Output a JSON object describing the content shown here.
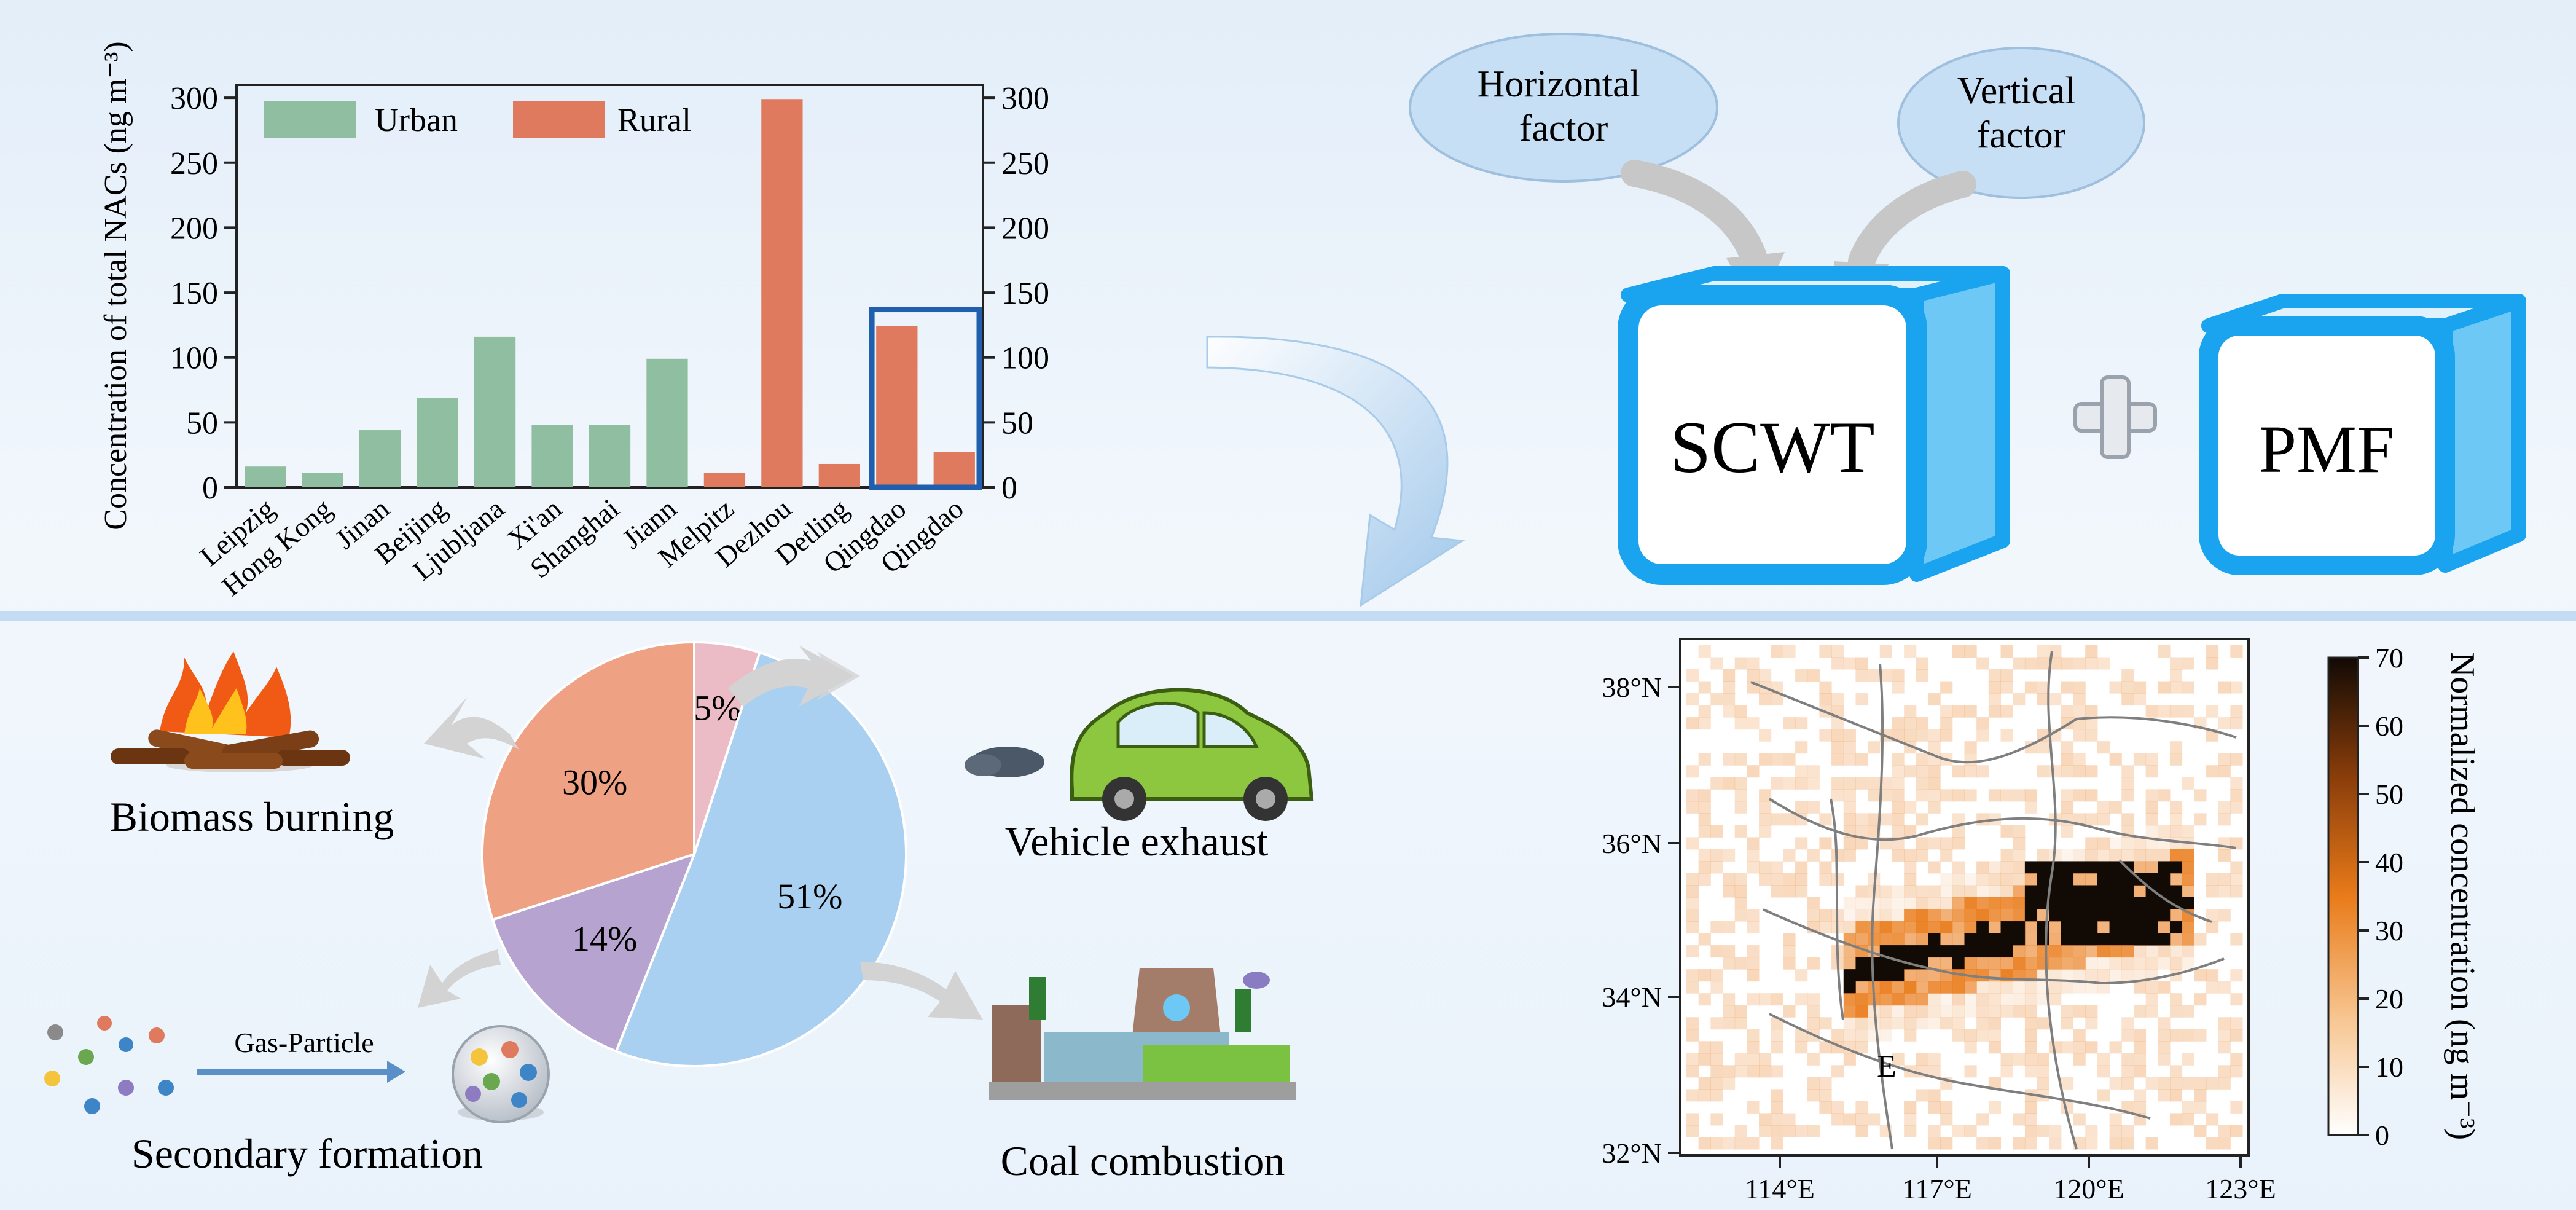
{
  "colors": {
    "urban": "#8fbfa0",
    "rural": "#e07a5f",
    "highlight_box": "#1f5fad",
    "cube_blue": "#1aa3ee",
    "ellipse_fill": "#c6dff4",
    "pie_vehicle": "#a9d0f0",
    "pie_coal": "#b6a3cf",
    "pie_biomass": "#efa184",
    "pie_secondary": "#ecbcc6",
    "map_dark": "#120a04",
    "map_orange": "#e97b1a"
  },
  "bar_chart": {
    "ylabel": "Concentration of total NACs (ng m⁻³)",
    "legend": [
      "Urban",
      "Rural"
    ],
    "y_ticks": [
      "0",
      "50",
      "100",
      "150",
      "200",
      "250",
      "300"
    ],
    "y_ticks_right": [
      "0",
      "50",
      "100",
      "150",
      "200",
      "250",
      "300"
    ]
  },
  "chart_data": {
    "type": "bar",
    "categories": [
      "Leipzig",
      "Hong Kong",
      "Jinan",
      "Beijing",
      "Ljubljana",
      "Xi'an",
      "Shanghai",
      "Jiann",
      "Melpitz",
      "Dezhou",
      "Detling",
      "Qingdao",
      "Qingdao"
    ],
    "series": [
      {
        "name": "Urban",
        "values": [
          16,
          11,
          44,
          69,
          116,
          48,
          48,
          99,
          null,
          null,
          null,
          null,
          null
        ]
      },
      {
        "name": "Rural",
        "values": [
          null,
          null,
          null,
          null,
          null,
          null,
          null,
          null,
          11,
          299,
          18,
          124,
          27
        ]
      }
    ],
    "xlabel": "",
    "ylabel": "Concentration of total NACs (ng m⁻³)",
    "ylim": [
      0,
      310
    ],
    "highlight_categories": [
      11,
      12
    ],
    "grid": false,
    "legend_position": "top-left"
  },
  "model": {
    "horizontal_factor": "Horizontal\nfactor",
    "vertical_factor": "Vertical\nfactor",
    "scwt": "SCWT",
    "pmf": "PMF",
    "plus": "+"
  },
  "sources": {
    "biomass": "Biomass burning",
    "vehicle": "Vehicle exhaust",
    "secondary": "Secondary formation",
    "coal": "Coal combustion",
    "gas_particle": "Gas-Particle"
  },
  "pie": {
    "slices": [
      {
        "source": "Secondary formation",
        "value": 5,
        "label": "5%"
      },
      {
        "source": "Vehicle exhaust",
        "value": 51,
        "label": "51%"
      },
      {
        "source": "Coal combustion",
        "value": 14,
        "label": "14%"
      },
      {
        "source": "Biomass burning",
        "value": 30,
        "label": "30%"
      }
    ]
  },
  "map": {
    "lat_labels": [
      "38°N",
      "36°N",
      "34°N",
      "32°N"
    ],
    "lon_labels": [
      "114°E",
      "117°E",
      "120°E",
      "123°E"
    ],
    "marker": "E",
    "colorbar_ticks": [
      "0",
      "10",
      "20",
      "30",
      "40",
      "50",
      "60",
      "70"
    ],
    "colorbar_title": "Normalized concentration (ng m⁻³)"
  }
}
